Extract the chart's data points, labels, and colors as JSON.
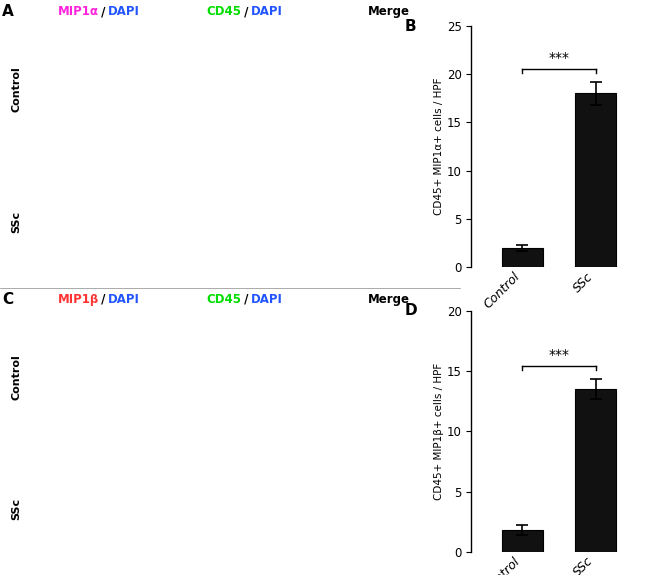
{
  "panel_B": {
    "categories": [
      "Control",
      "SSc"
    ],
    "values": [
      2.0,
      18.0
    ],
    "errors": [
      0.35,
      1.2
    ],
    "ylabel": "CD45+ MIP1α+ cells / HPF",
    "ylim": [
      0,
      25
    ],
    "yticks": [
      0,
      5,
      10,
      15,
      20,
      25
    ],
    "sig_text": "***",
    "bar_color": "#111111",
    "label": "B"
  },
  "panel_D": {
    "categories": [
      "Control",
      "SSc"
    ],
    "values": [
      1.8,
      13.5
    ],
    "errors": [
      0.4,
      0.8
    ],
    "ylabel": "CD45+ MIP1β+ cells / HPF",
    "ylim": [
      0,
      20
    ],
    "yticks": [
      0,
      5,
      10,
      15,
      20
    ],
    "sig_text": "***",
    "bar_color": "#111111",
    "label": "D"
  },
  "panel_A_label": "A",
  "panel_C_label": "C",
  "mip1a_name": "MIP1α",
  "mip1b_name": "MIP1β",
  "mip1a_color": "#ff22dd",
  "mip1b_color": "#ff3333",
  "cd45_color": "#00dd00",
  "dapi_color": "#2255ff",
  "row_labels": [
    "Control",
    "SSc"
  ],
  "fig_bg": "#ffffff"
}
